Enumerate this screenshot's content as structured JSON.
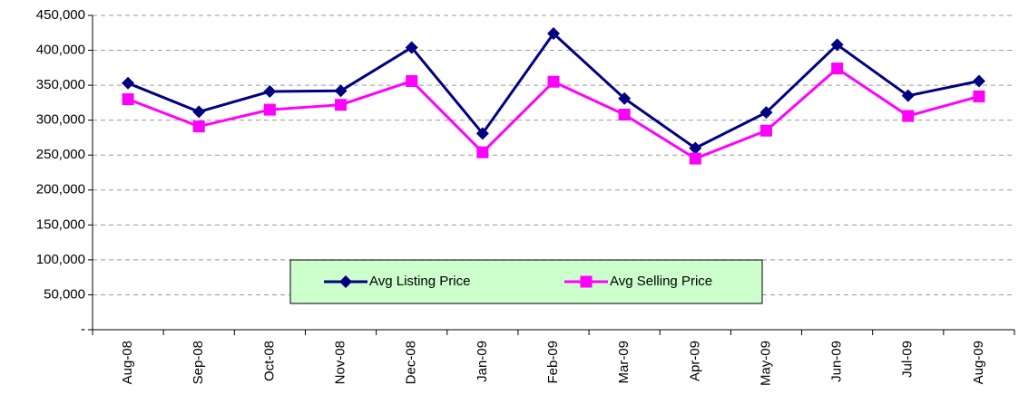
{
  "chart_data": {
    "type": "line",
    "categories": [
      "Aug-08",
      "Sep-08",
      "Oct-08",
      "Nov-08",
      "Dec-08",
      "Jan-09",
      "Feb-09",
      "Mar-09",
      "Apr-09",
      "May-09",
      "Jun-09",
      "Jul-09",
      "Aug-09"
    ],
    "series": [
      {
        "name": "Avg Listing Price",
        "color": "#000080",
        "marker": "diamond",
        "values": [
          353000,
          312000,
          341000,
          342000,
          404000,
          281000,
          424000,
          331000,
          260000,
          311000,
          408000,
          335000,
          356000
        ]
      },
      {
        "name": "Avg Selling Price",
        "color": "#ff00ff",
        "marker": "square",
        "values": [
          330000,
          291000,
          315000,
          322000,
          356000,
          254000,
          355000,
          308000,
          245000,
          285000,
          374000,
          306000,
          334000
        ]
      }
    ],
    "ylim": [
      0,
      450000
    ],
    "yticks": [
      {
        "value": 0,
        "label": "-"
      },
      {
        "value": 50000,
        "label": "50,000"
      },
      {
        "value": 100000,
        "label": "100,000"
      },
      {
        "value": 150000,
        "label": "150,000"
      },
      {
        "value": 200000,
        "label": "200,000"
      },
      {
        "value": 250000,
        "label": "250,000"
      },
      {
        "value": 300000,
        "label": "300,000"
      },
      {
        "value": 350000,
        "label": "350,000"
      },
      {
        "value": 400000,
        "label": "400,000"
      },
      {
        "value": 450000,
        "label": "450,000"
      }
    ],
    "grid": true,
    "legend": "bottom"
  }
}
